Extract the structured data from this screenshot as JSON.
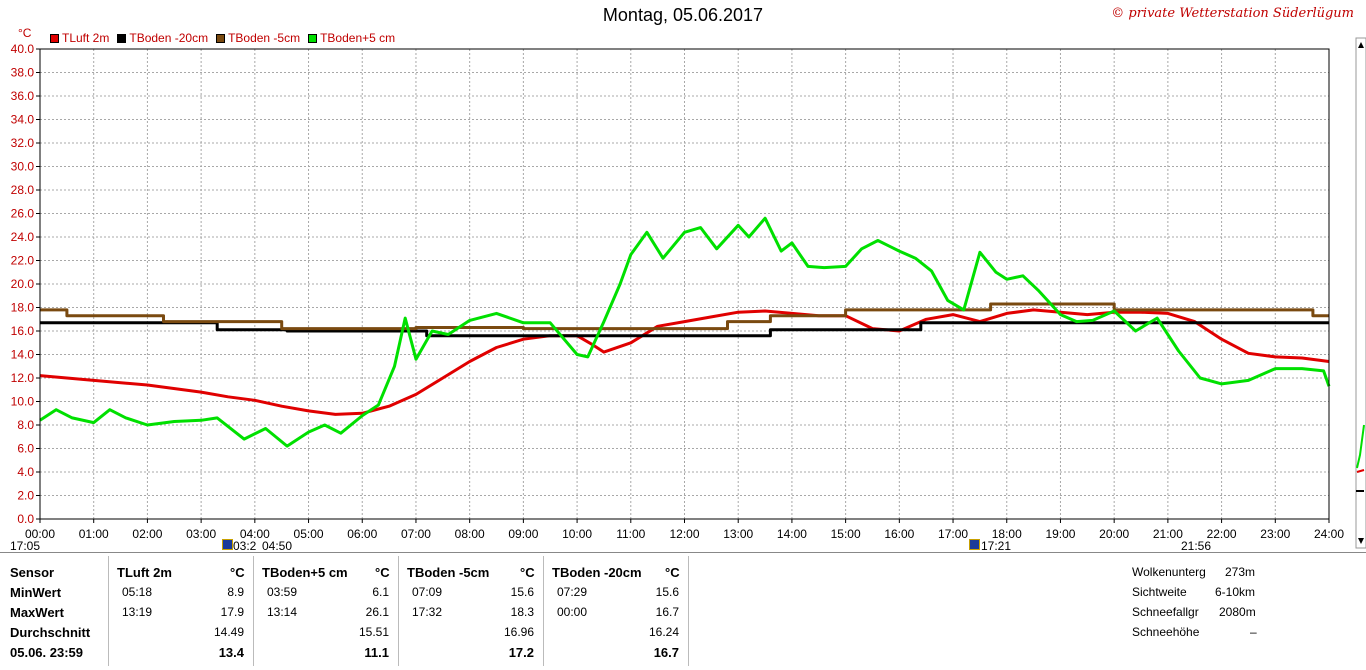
{
  "header": {
    "title": "Montag, 05.06.2017",
    "copyright": "© private Wetterstation Süderlügum",
    "unit": "°C"
  },
  "legend": [
    {
      "label": "TLuft 2m",
      "color": "#e00000"
    },
    {
      "label": "TBoden -20cm",
      "color": "#000000"
    },
    {
      "label": "TBoden -5cm",
      "color": "#7a4a10"
    },
    {
      "label": "TBoden+5 cm",
      "color": "#00e000"
    }
  ],
  "chart_data": {
    "type": "line",
    "ylim": [
      0,
      40
    ],
    "xlim": [
      0,
      24
    ],
    "grid": true,
    "x_ticks": [
      "00:00",
      "01:00",
      "02:00",
      "03:00",
      "04:00",
      "05:00",
      "06:00",
      "07:00",
      "08:00",
      "09:00",
      "10:00",
      "11:00",
      "12:00",
      "13:00",
      "14:00",
      "15:00",
      "16:00",
      "17:00",
      "18:00",
      "19:00",
      "20:00",
      "21:00",
      "22:00",
      "23:00",
      "24:00"
    ],
    "y_ticks": [
      "0.0",
      "2.0",
      "4.0",
      "6.0",
      "8.0",
      "10.0",
      "12.0",
      "14.0",
      "16.0",
      "18.0",
      "20.0",
      "22.0",
      "24.0",
      "26.0",
      "28.0",
      "30.0",
      "32.0",
      "34.0",
      "36.0",
      "38.0",
      "40.0"
    ],
    "series": [
      {
        "name": "TLuft 2m",
        "color": "#e00000",
        "x": [
          0,
          1,
          2,
          3,
          3.5,
          4,
          4.5,
          5,
          5.5,
          6,
          6.5,
          7,
          7.5,
          8,
          8.5,
          9,
          9.5,
          10,
          10.3,
          10.5,
          11,
          11.5,
          12,
          12.5,
          13,
          13.5,
          14,
          14.5,
          15,
          15.5,
          16,
          16.5,
          17,
          17.5,
          18,
          18.5,
          19,
          19.5,
          20,
          20.5,
          21,
          21.5,
          22,
          22.5,
          23,
          23.5,
          24
        ],
        "y": [
          12.2,
          11.8,
          11.4,
          10.8,
          10.4,
          10.1,
          9.6,
          9.2,
          8.9,
          9.0,
          9.6,
          10.6,
          12.0,
          13.4,
          14.6,
          15.3,
          15.6,
          15.6,
          14.8,
          14.2,
          15.0,
          16.4,
          16.8,
          17.2,
          17.6,
          17.7,
          17.5,
          17.3,
          17.3,
          16.2,
          16.0,
          17.0,
          17.4,
          16.8,
          17.5,
          17.8,
          17.6,
          17.4,
          17.6,
          17.6,
          17.5,
          16.8,
          15.3,
          14.1,
          13.8,
          13.7,
          13.4
        ]
      },
      {
        "name": "TBoden -20cm",
        "color": "#000000",
        "x": [
          0,
          3.3,
          3.3,
          4.6,
          4.6,
          7.2,
          7.2,
          10.6,
          10.6,
          13.6,
          13.6,
          16.4,
          16.4,
          18.8,
          18.8,
          24
        ],
        "y": [
          16.7,
          16.7,
          16.1,
          16.1,
          16.0,
          16.0,
          15.6,
          15.6,
          15.6,
          15.6,
          16.1,
          16.1,
          16.7,
          16.7,
          16.7,
          16.7
        ]
      },
      {
        "name": "TBoden -5cm",
        "color": "#7a4a10",
        "x": [
          0,
          0.5,
          0.5,
          2.3,
          2.3,
          4.5,
          4.5,
          7.0,
          7.0,
          9.0,
          9.0,
          12.8,
          12.8,
          13.6,
          13.6,
          15.0,
          15.0,
          17.0,
          17.0,
          17.7,
          17.7,
          19.0,
          19.0,
          20.0,
          20.0,
          23.7,
          23.7,
          24
        ],
        "y": [
          17.8,
          17.8,
          17.3,
          17.3,
          16.8,
          16.8,
          16.2,
          16.2,
          16.3,
          16.3,
          16.2,
          16.2,
          16.8,
          16.8,
          17.3,
          17.3,
          17.8,
          17.8,
          17.8,
          17.8,
          18.3,
          18.3,
          18.3,
          18.3,
          17.8,
          17.8,
          17.3,
          17.3
        ]
      },
      {
        "name": "TBoden+5 cm",
        "color": "#00e000",
        "x": [
          0,
          0.3,
          0.6,
          1.0,
          1.3,
          1.6,
          2.0,
          2.5,
          3.0,
          3.3,
          3.8,
          4.2,
          4.6,
          5.0,
          5.3,
          5.6,
          6.0,
          6.3,
          6.6,
          6.8,
          7.0,
          7.3,
          7.6,
          8.0,
          8.5,
          9.0,
          9.5,
          10.0,
          10.2,
          10.5,
          10.8,
          11.0,
          11.3,
          11.6,
          12.0,
          12.3,
          12.6,
          13.0,
          13.2,
          13.5,
          13.8,
          14.0,
          14.3,
          14.6,
          15.0,
          15.3,
          15.6,
          16.0,
          16.3,
          16.6,
          16.9,
          17.2,
          17.5,
          17.8,
          18.0,
          18.3,
          18.6,
          19.0,
          19.3,
          19.6,
          20.0,
          20.4,
          20.8,
          21.2,
          21.6,
          22.0,
          22.5,
          23.0,
          23.5,
          23.9,
          24
        ],
        "y": [
          8.4,
          9.3,
          8.6,
          8.2,
          9.3,
          8.6,
          8.0,
          8.3,
          8.4,
          8.6,
          6.8,
          7.7,
          6.2,
          7.4,
          8.0,
          7.3,
          8.8,
          9.7,
          13.0,
          17.1,
          13.6,
          16.0,
          15.7,
          16.9,
          17.5,
          16.7,
          16.7,
          14.0,
          13.8,
          16.8,
          20.0,
          22.5,
          24.4,
          22.2,
          24.4,
          24.8,
          23.0,
          25.0,
          24.0,
          25.6,
          22.8,
          23.5,
          21.5,
          21.4,
          21.5,
          23.0,
          23.7,
          22.8,
          22.2,
          21.1,
          18.6,
          17.8,
          22.7,
          21.0,
          20.4,
          20.7,
          19.4,
          17.4,
          16.8,
          16.9,
          17.7,
          16.0,
          17.1,
          14.3,
          12.0,
          11.5,
          11.8,
          12.8,
          12.8,
          12.6,
          11.3
        ]
      }
    ]
  },
  "markers": {
    "bottom_left": "17:05",
    "bottom_a": "03:2",
    "bottom_b": "04:50",
    "bottom_c": "17:21",
    "bottom_d": "21:56"
  },
  "stats": {
    "row_labels": [
      "Sensor",
      "MinWert",
      "MaxWert",
      "Durchschnitt",
      "05.06. 23:59"
    ],
    "columns": [
      {
        "name": "TLuft 2m",
        "unit": "°C",
        "min_time": "05:18",
        "min_val": "8.9",
        "max_time": "13:19",
        "max_val": "17.9",
        "avg": "14.49",
        "last": "13.4"
      },
      {
        "name": "TBoden+5 cm",
        "unit": "°C",
        "min_time": "03:59",
        "min_val": "6.1",
        "max_time": "13:14",
        "max_val": "26.1",
        "avg": "15.51",
        "last": "11.1"
      },
      {
        "name": "TBoden -5cm",
        "unit": "°C",
        "min_time": "07:09",
        "min_val": "15.6",
        "max_time": "17:32",
        "max_val": "18.3",
        "avg": "16.96",
        "last": "17.2"
      },
      {
        "name": "TBoden -20cm",
        "unit": "°C",
        "min_time": "07:29",
        "min_val": "15.6",
        "max_time": "00:00",
        "max_val": "16.7",
        "avg": "16.24",
        "last": "16.7"
      }
    ],
    "extra": [
      {
        "label": "Wolkenunterg",
        "value": "273m"
      },
      {
        "label": "Sichtweite",
        "value": "6-10km"
      },
      {
        "label": "Schneefallgr",
        "value": "2080m"
      },
      {
        "label": "Schneehöhe",
        "value": "–"
      }
    ]
  }
}
